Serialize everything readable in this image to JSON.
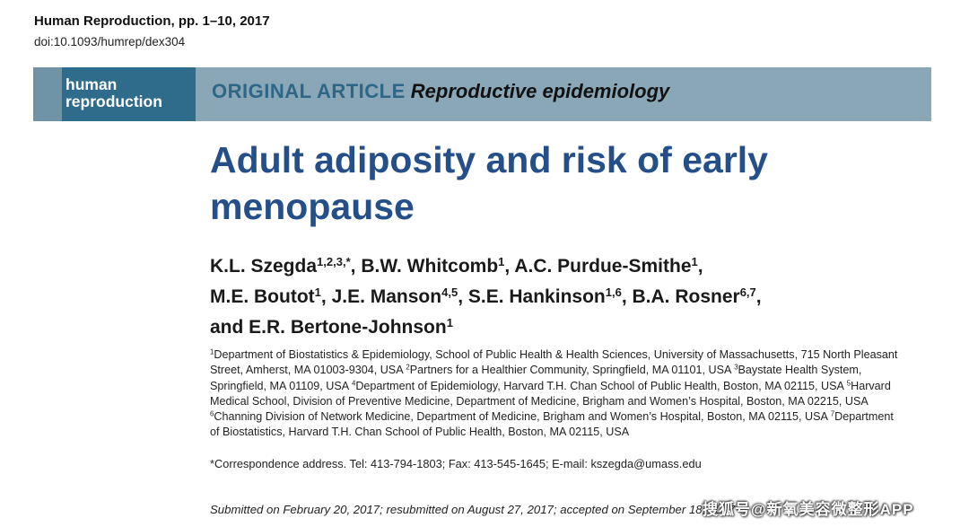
{
  "header": {
    "journal": "Human Reproduction, pp. 1–10, 2017",
    "doi": "doi:10.1093/humrep/dex304"
  },
  "banner": {
    "brand_line1": "human",
    "brand_line2": "reproduction",
    "article_kind": "ORIGINAL ARTICLE",
    "article_subject": "Reproductive epidemiology"
  },
  "title": {
    "line1": "Adult adiposity and risk of early",
    "line2": "menopause"
  },
  "authors": [
    {
      "name": "K.L. Szegda",
      "sup": "1,2,3,*",
      "sep": ", "
    },
    {
      "name": "B.W. Whitcomb",
      "sup": "1",
      "sep": ", "
    },
    {
      "name": "A.C. Purdue-Smithe",
      "sup": "1",
      "sep": ","
    },
    {
      "name": "M.E. Boutot",
      "sup": "1",
      "sep": ", "
    },
    {
      "name": "J.E. Manson",
      "sup": "4,5",
      "sep": ", "
    },
    {
      "name": "S.E. Hankinson",
      "sup": "1,6",
      "sep": ", "
    },
    {
      "name": "B.A. Rosner",
      "sup": "6,7",
      "sep": ","
    },
    {
      "name": "and E.R. Bertone-Johnson",
      "sup": "1",
      "sep": ""
    }
  ],
  "affiliations": {
    "a1_sup": "1",
    "a1": "Department of Biostatistics & Epidemiology, School of Public Health & Health Sciences, University of Massachusetts, 715 North Pleasant",
    "a1b": "Street, Amherst, MA 01003-9304, USA ",
    "a2_sup": "2",
    "a2": "Partners for a Healthier Community, Springfield, MA 01101, USA ",
    "a3_sup": "3",
    "a3": "Baystate Health System,",
    "a3b": "Springfield, MA 01109, USA ",
    "a4_sup": "4",
    "a4": "Department of Epidemiology, Harvard T.H. Chan School of Public Health, Boston, MA 02115, USA ",
    "a5_sup": "5",
    "a5": "Harvard",
    "a5b": "Medical School, Division of Preventive Medicine, Department of Medicine, Brigham and Women’s Hospital, Boston, MA 02215, USA",
    "a6_sup": "6",
    "a6": "Channing Division of Network Medicine, Department of Medicine, Brigham and Women’s Hospital, Boston, MA 02115, USA ",
    "a7_sup": "7",
    "a7": "Department",
    "a7b": "of Biostatistics, Harvard T.H. Chan School of Public Health, Boston, MA 02115, USA"
  },
  "correspondence": "*Correspondence address. Tel: 413-794-1803; Fax: 413-545-1645; E-mail: kszegda@umass.edu",
  "submitted": "Submitted on February 20, 2017; resubmitted on August 27, 2017; accepted on September 18, 2017",
  "watermark": "搜狐号@新氧美容微整形APP"
}
